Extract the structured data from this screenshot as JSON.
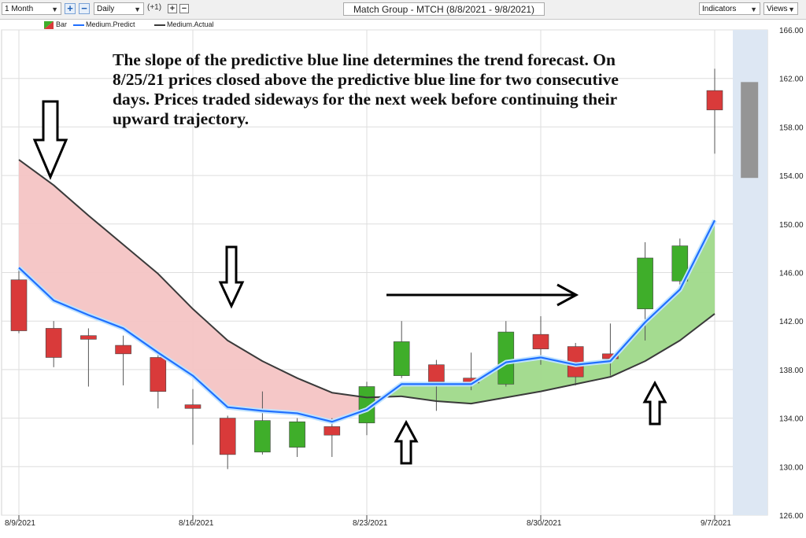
{
  "toolbar": {
    "period_select": "1 Month",
    "interval_select": "Daily",
    "interval_step": "(+1)",
    "indicators_label": "Indicators",
    "views_label": "Views",
    "plus_label": "+",
    "minus_label": "−"
  },
  "window_title": "Match Group - MTCH (8/8/2021 - 9/8/2021)",
  "legend": {
    "bar_label": "Bar",
    "predict_label": "Medium.Predict",
    "actual_label": "Medium.Actual"
  },
  "annotation": "The slope of the predictive blue line determines the trend forecast.  On 8/25/21 prices closed above the predictive blue line for two consecutive days.  Prices traded sideways for the next week before continuing their upward trajectory.",
  "colors": {
    "up_candle": "#3fae2a",
    "down_candle": "#d93a3a",
    "predict_line": "#1f6fff",
    "actual_line": "#3a3a3a",
    "bearish_fill": "#f4c4c4",
    "bullish_fill": "#9fd98a",
    "forecast_band": "#dde7f3"
  },
  "chart_data": {
    "type": "candlestick",
    "y_range": [
      126,
      166
    ],
    "y_ticks": [
      "126.00",
      "130.00",
      "134.00",
      "138.00",
      "142.00",
      "146.00",
      "150.00",
      "154.00",
      "158.00",
      "162.00",
      "166.00"
    ],
    "x_tick_labels": [
      {
        "label": "8/9/2021",
        "index": 0
      },
      {
        "label": "8/16/2021",
        "index": 5
      },
      {
        "label": "8/23/2021",
        "index": 10
      },
      {
        "label": "8/30/2021",
        "index": 15
      },
      {
        "label": "9/7/2021",
        "index": 20
      }
    ],
    "candles": [
      {
        "date": "8/9/2021",
        "open": 145.4,
        "high": 146.2,
        "low": 141.0,
        "close": 141.2
      },
      {
        "date": "8/10/2021",
        "open": 141.4,
        "high": 142.0,
        "low": 138.2,
        "close": 139.0
      },
      {
        "date": "8/11/2021",
        "open": 140.8,
        "high": 141.4,
        "low": 136.6,
        "close": 140.5
      },
      {
        "date": "8/12/2021",
        "open": 140.0,
        "high": 140.8,
        "low": 136.7,
        "close": 139.3
      },
      {
        "date": "8/13/2021",
        "open": 139.0,
        "high": 139.6,
        "low": 134.8,
        "close": 136.2
      },
      {
        "date": "8/16/2021",
        "open": 135.1,
        "high": 136.4,
        "low": 131.8,
        "close": 134.8
      },
      {
        "date": "8/17/2021",
        "open": 134.0,
        "high": 134.2,
        "low": 129.8,
        "close": 131.0
      },
      {
        "date": "8/18/2021",
        "open": 131.2,
        "high": 136.2,
        "low": 131.0,
        "close": 133.8
      },
      {
        "date": "8/19/2021",
        "open": 131.6,
        "high": 134.0,
        "low": 130.8,
        "close": 133.7
      },
      {
        "date": "8/20/2021",
        "open": 133.3,
        "high": 134.0,
        "low": 130.8,
        "close": 132.6
      },
      {
        "date": "8/23/2021",
        "open": 133.6,
        "high": 137.0,
        "low": 132.6,
        "close": 136.6
      },
      {
        "date": "8/24/2021",
        "open": 137.5,
        "high": 142.0,
        "low": 137.3,
        "close": 140.3
      },
      {
        "date": "8/25/2021",
        "open": 138.4,
        "high": 138.8,
        "low": 134.6,
        "close": 137.0
      },
      {
        "date": "8/26/2021",
        "open": 137.3,
        "high": 139.4,
        "low": 136.3,
        "close": 136.9
      },
      {
        "date": "8/27/2021",
        "open": 136.8,
        "high": 142.0,
        "low": 136.6,
        "close": 141.1
      },
      {
        "date": "8/30/2021",
        "open": 140.9,
        "high": 142.4,
        "low": 138.4,
        "close": 139.7
      },
      {
        "date": "8/31/2021",
        "open": 139.9,
        "high": 140.2,
        "low": 136.7,
        "close": 137.4
      },
      {
        "date": "9/1/2021",
        "open": 139.3,
        "high": 141.8,
        "low": 137.5,
        "close": 138.9
      },
      {
        "date": "9/2/2021",
        "open": 143.0,
        "high": 148.5,
        "low": 140.4,
        "close": 147.2
      },
      {
        "date": "9/3/2021",
        "open": 145.3,
        "high": 148.8,
        "low": 145.0,
        "close": 148.2
      },
      {
        "date": "9/7/2021",
        "open": 161.0,
        "high": 162.8,
        "low": 155.8,
        "close": 159.4
      }
    ],
    "forecast_bar": {
      "open": 161.7,
      "close": 153.8
    },
    "series": [
      {
        "name": "Medium.Predict",
        "values": [
          146.4,
          143.7,
          142.5,
          141.4,
          139.4,
          137.5,
          134.9,
          134.6,
          134.4,
          133.7,
          134.7,
          136.8,
          136.8,
          136.8,
          138.6,
          139.0,
          138.4,
          138.7,
          141.9,
          144.6,
          150.3
        ]
      },
      {
        "name": "Medium.Actual",
        "values": [
          155.3,
          153.2,
          150.7,
          148.3,
          145.9,
          143.0,
          140.4,
          138.7,
          137.3,
          136.1,
          135.7,
          135.8,
          135.4,
          135.2,
          135.7,
          136.2,
          136.8,
          137.4,
          138.7,
          140.4,
          142.6
        ]
      }
    ],
    "annotation_arrows": [
      {
        "direction": "down"
      },
      {
        "direction": "down"
      },
      {
        "direction": "up"
      },
      {
        "direction": "right"
      },
      {
        "direction": "up"
      }
    ]
  }
}
